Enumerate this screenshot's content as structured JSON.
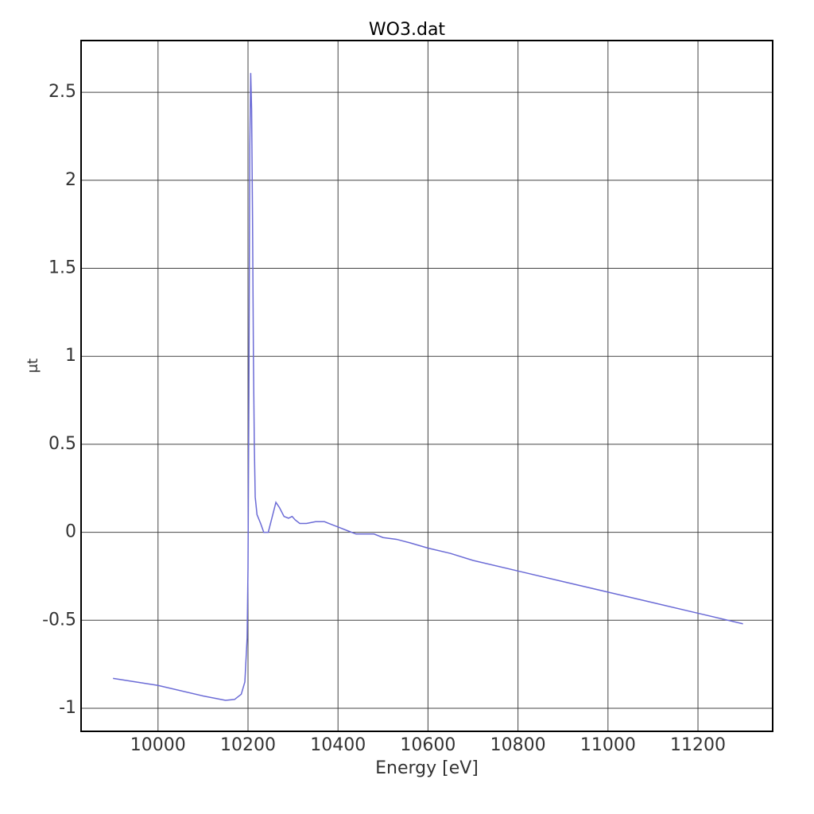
{
  "chart_data": {
    "type": "line",
    "title": "WO3.dat",
    "x_label": "Energy [eV]",
    "y_label": "μt",
    "x": [
      9900,
      10000,
      10100,
      10150,
      10170,
      10185,
      10193,
      10198,
      10200,
      10202,
      10204,
      10206,
      10208,
      10210,
      10212,
      10214,
      10216,
      10220,
      10228,
      10235,
      10245,
      10255,
      10262,
      10270,
      10280,
      10290,
      10298,
      10305,
      10315,
      10330,
      10350,
      10370,
      10380,
      10400,
      10420,
      10440,
      10460,
      10480,
      10500,
      10530,
      10560,
      10600,
      10650,
      10700,
      10800,
      10900,
      11000,
      11100,
      11200,
      11300
    ],
    "series": [
      {
        "name": "WO3.dat",
        "color": "#6b6bd6",
        "values": [
          -0.83,
          -0.87,
          -0.93,
          -0.955,
          -0.95,
          -0.92,
          -0.85,
          -0.6,
          -0.2,
          0.8,
          2.2,
          2.61,
          2.4,
          1.8,
          1.0,
          0.5,
          0.2,
          0.1,
          0.05,
          0.0,
          0.0,
          0.1,
          0.17,
          0.14,
          0.09,
          0.08,
          0.09,
          0.07,
          0.05,
          0.05,
          0.06,
          0.06,
          0.05,
          0.03,
          0.01,
          -0.01,
          -0.01,
          -0.01,
          -0.03,
          -0.04,
          -0.06,
          -0.09,
          -0.12,
          -0.16,
          -0.22,
          -0.28,
          -0.34,
          -0.4,
          -0.46,
          -0.52
        ]
      }
    ],
    "xlim": [
      9829,
      11366
    ],
    "xticks": [
      10000,
      10200,
      10400,
      10600,
      10800,
      11000,
      11200
    ],
    "ylim": [
      -1.131,
      2.794
    ],
    "yticks": [
      -1,
      -0.5,
      0,
      0.5,
      1,
      1.5,
      2,
      2.5
    ],
    "grid": true
  }
}
